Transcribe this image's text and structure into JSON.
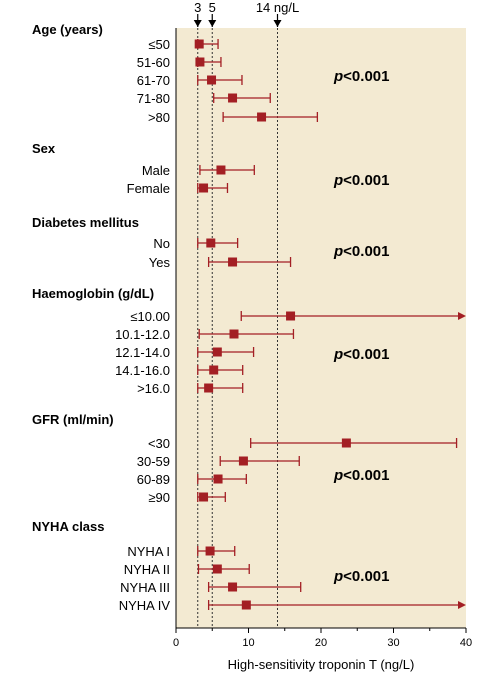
{
  "chart_data": {
    "type": "forest",
    "xlabel": "High-sensitivity troponin T (ng/L)",
    "xlim": [
      0,
      40
    ],
    "xticks": [
      0,
      10,
      20,
      30,
      40
    ],
    "reference_lines": [
      {
        "value": 3,
        "label": "3"
      },
      {
        "value": 5,
        "label": "5"
      },
      {
        "value": 14,
        "label": "14 ng/L"
      }
    ],
    "colors": {
      "marker": "#a31f24",
      "plot_background": "#f3ead2"
    },
    "groups": [
      {
        "title": "Age (years)",
        "p_prefix": "p",
        "p_suffix": "<0.001",
        "rows": [
          {
            "label": "≤50",
            "median": 3.2,
            "low": 3.0,
            "high": 5.8,
            "arrow": false
          },
          {
            "label": "51-60",
            "median": 3.3,
            "low": 3.0,
            "high": 6.2,
            "arrow": false
          },
          {
            "label": "61-70",
            "median": 4.9,
            "low": 3.0,
            "high": 9.1,
            "arrow": false
          },
          {
            "label": "71-80",
            "median": 7.8,
            "low": 5.2,
            "high": 13.0,
            "arrow": false
          },
          {
            "label": ">80",
            "median": 11.8,
            "low": 6.5,
            "high": 19.5,
            "arrow": false
          }
        ]
      },
      {
        "title": "Sex",
        "p_prefix": "p",
        "p_suffix": "<0.001",
        "rows": [
          {
            "label": "Male",
            "median": 6.2,
            "low": 3.3,
            "high": 10.8,
            "arrow": false
          },
          {
            "label": "Female",
            "median": 3.8,
            "low": 3.0,
            "high": 7.1,
            "arrow": false
          }
        ]
      },
      {
        "title": "Diabetes mellitus",
        "p_prefix": "p",
        "p_suffix": "<0.001",
        "rows": [
          {
            "label": "No",
            "median": 4.8,
            "low": 3.0,
            "high": 8.5,
            "arrow": false
          },
          {
            "label": "Yes",
            "median": 7.8,
            "low": 4.5,
            "high": 15.8,
            "arrow": false
          }
        ]
      },
      {
        "title": "Haemoglobin (g/dL)",
        "p_prefix": "p",
        "p_suffix": "<0.001",
        "rows": [
          {
            "label": "≤10.00",
            "median": 15.8,
            "low": 9.0,
            "high": 40,
            "arrow": true
          },
          {
            "label": "10.1-12.0",
            "median": 8.0,
            "low": 3.2,
            "high": 16.2,
            "arrow": false
          },
          {
            "label": "12.1-14.0",
            "median": 5.7,
            "low": 3.0,
            "high": 10.7,
            "arrow": false
          },
          {
            "label": "14.1-16.0",
            "median": 5.2,
            "low": 3.0,
            "high": 9.2,
            "arrow": false
          },
          {
            "label": ">16.0",
            "median": 4.5,
            "low": 3.0,
            "high": 9.2,
            "arrow": false
          }
        ]
      },
      {
        "title": "GFR (ml/min)",
        "p_prefix": "p",
        "p_suffix": "<0.001",
        "rows": [
          {
            "label": "<30",
            "median": 23.5,
            "low": 10.3,
            "high": 38.7,
            "arrow": false
          },
          {
            "label": "30-59",
            "median": 9.3,
            "low": 6.1,
            "high": 17.0,
            "arrow": false
          },
          {
            "label": "60-89",
            "median": 5.8,
            "low": 3.0,
            "high": 9.7,
            "arrow": false
          },
          {
            "label": "≥90",
            "median": 3.8,
            "low": 3.0,
            "high": 6.8,
            "arrow": false
          }
        ]
      },
      {
        "title": "NYHA class",
        "p_prefix": "p",
        "p_suffix": "<0.001",
        "rows": [
          {
            "label": "NYHA I",
            "median": 4.7,
            "low": 3.0,
            "high": 8.1,
            "arrow": false
          },
          {
            "label": "NYHA II",
            "median": 5.7,
            "low": 3.1,
            "high": 10.1,
            "arrow": false
          },
          {
            "label": "NYHA III",
            "median": 7.8,
            "low": 4.5,
            "high": 17.2,
            "arrow": false
          },
          {
            "label": "NYHA IV",
            "median": 9.7,
            "low": 4.5,
            "high": 40,
            "arrow": true
          }
        ]
      }
    ]
  }
}
